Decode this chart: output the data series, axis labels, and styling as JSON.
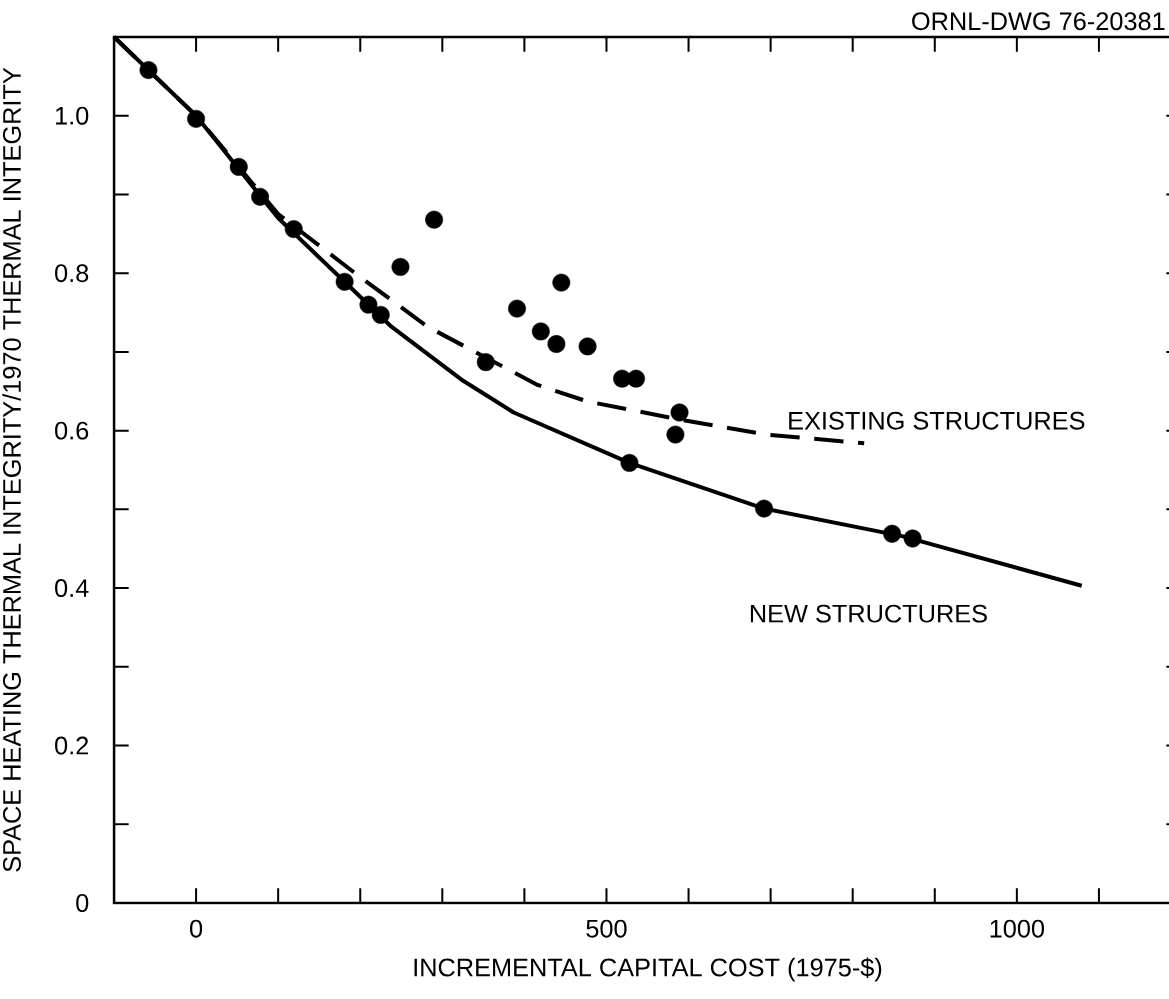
{
  "chart_data": {
    "type": "scatter",
    "xlabel": "INCREMENTAL CAPITAL COST (1975-$)",
    "ylabel": "SPACE HEATING THERMAL INTEGRITY/1970 THERMAL INTEGRITY",
    "annotations": [
      "ORNL-DWG 76-20381"
    ],
    "xlim": [
      -100,
      1200
    ],
    "ylim": [
      0,
      1.1
    ],
    "xticks": [
      0,
      {
        "value": 100,
        "label": null
      },
      {
        "value": 200,
        "label": null
      },
      {
        "value": 300,
        "label": null
      },
      {
        "value": 400,
        "label": null
      },
      500,
      {
        "value": 600,
        "label": null
      },
      {
        "value": 700,
        "label": null
      },
      {
        "value": 800,
        "label": null
      },
      {
        "value": 900,
        "label": null
      },
      1000,
      {
        "value": 1100,
        "label": null
      }
    ],
    "yticks": [
      0,
      {
        "value": 0.1,
        "label": null
      },
      {
        "value": 0.2,
        "label": "0.2"
      },
      {
        "value": 0.3,
        "label": null
      },
      {
        "value": 0.4,
        "label": "0.4"
      },
      {
        "value": 0.5,
        "label": null
      },
      {
        "value": 0.6,
        "label": "0.6"
      },
      {
        "value": 0.7,
        "label": null
      },
      {
        "value": 0.8,
        "label": "0.8"
      },
      {
        "value": 0.9,
        "label": null
      },
      {
        "value": 1.0,
        "label": "1.0"
      }
    ],
    "series": [
      {
        "type": "line",
        "name": "EXISTING STRUCTURES",
        "color": "#000000",
        "line_style": "dashed",
        "x": [
          -100,
          0,
          100,
          200,
          282,
          416,
          477,
          590,
          695,
          814
        ],
        "values": [
          1.1,
          1.0,
          0.875,
          0.795,
          0.732,
          0.658,
          0.637,
          0.614,
          0.595,
          0.584
        ]
      },
      {
        "type": "line",
        "name": "NEW STRUCTURES",
        "color": "#000000",
        "line_style": "solid",
        "x": [
          -100,
          0,
          100,
          180,
          238,
          323,
          387,
          528,
          692,
          860,
          1079
        ],
        "values": [
          1.1,
          1.0,
          0.87,
          0.79,
          0.732,
          0.665,
          0.623,
          0.559,
          0.501,
          0.466,
          0.403
        ]
      },
      {
        "type": "scatter",
        "color": "#000000",
        "marker": "circle",
        "x": [
          -58,
          0,
          52,
          78,
          119,
          181,
          210,
          225,
          249,
          290,
          353,
          391,
          420,
          439,
          445,
          477,
          519,
          536,
          528,
          584,
          589,
          692,
          848,
          873
        ],
        "values": [
          1.058,
          0.996,
          0.935,
          0.897,
          0.856,
          0.789,
          0.76,
          0.747,
          0.808,
          0.868,
          0.687,
          0.755,
          0.726,
          0.71,
          0.788,
          0.707,
          0.666,
          0.666,
          0.559,
          0.595,
          0.623,
          0.501,
          0.469,
          0.463
        ]
      }
    ]
  }
}
